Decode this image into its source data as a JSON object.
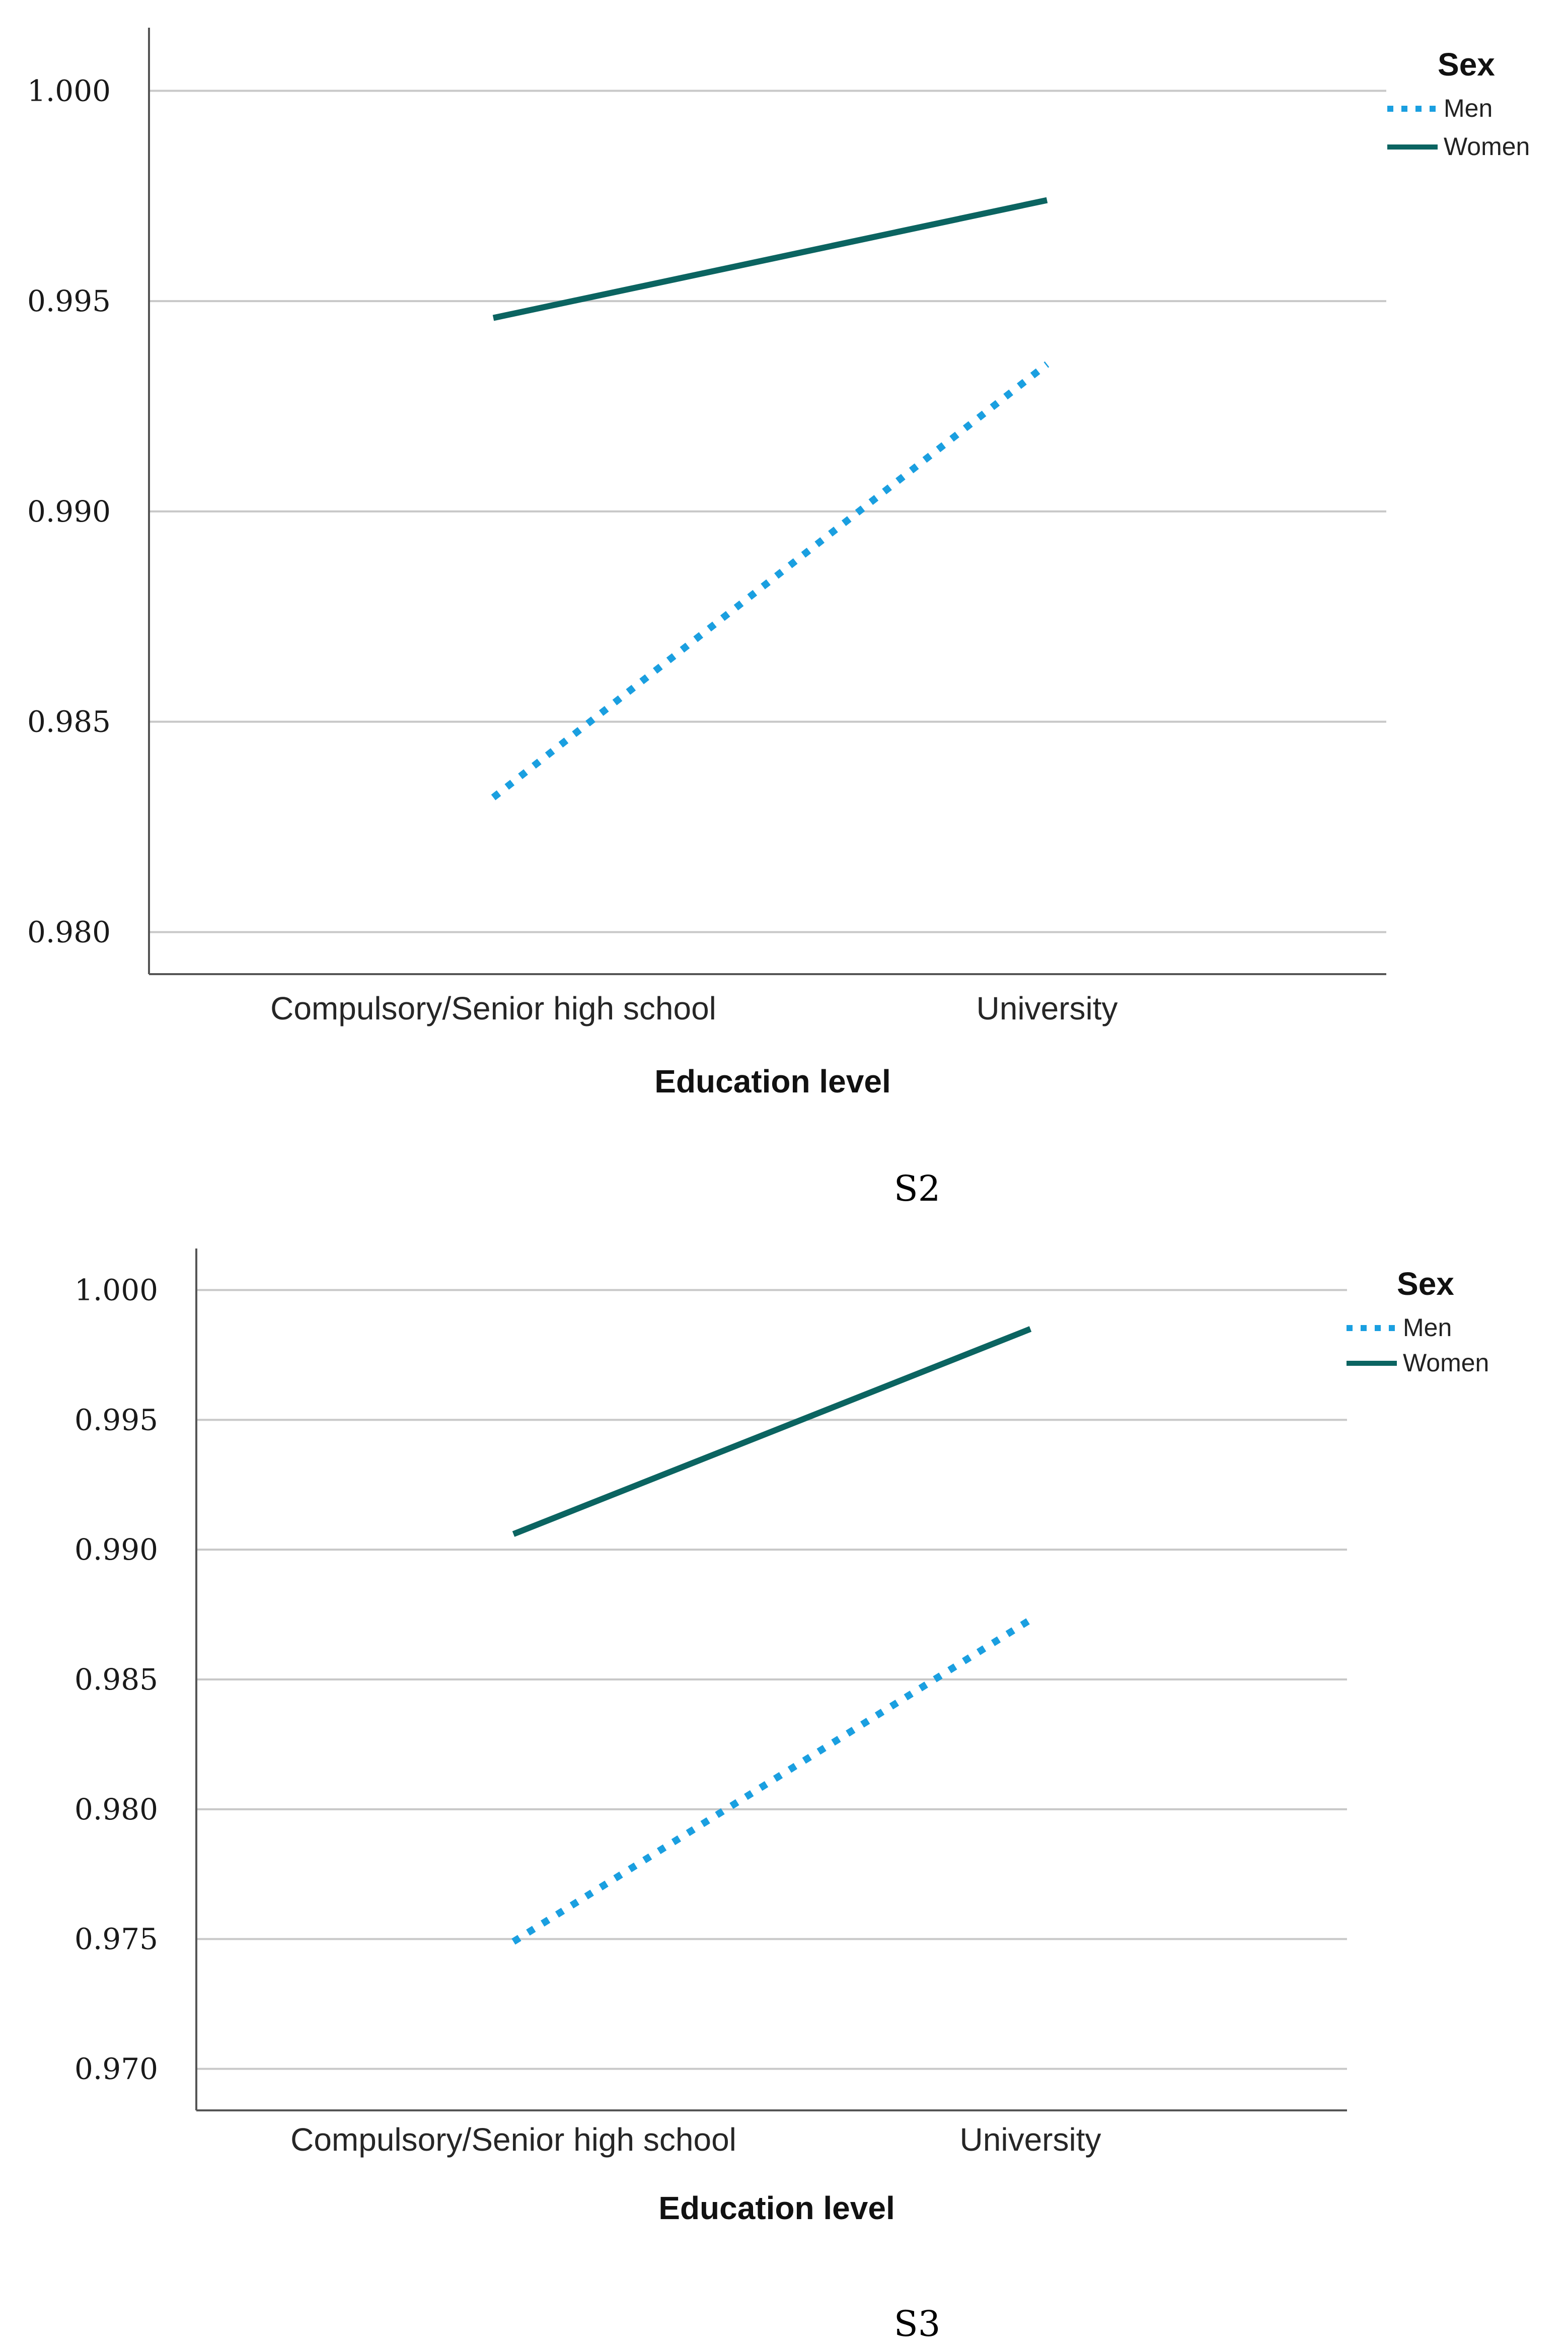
{
  "chart_data": [
    {
      "type": "line",
      "id": "S2",
      "caption": "S2",
      "xlabel": "Education level",
      "ylabel": "",
      "categories": [
        "Compulsory/Senior high school",
        "University"
      ],
      "ylim": [
        0.979,
        1.0015
      ],
      "yticks": [
        "0.980",
        "0.985",
        "0.990",
        "0.995",
        "1.000"
      ],
      "grid": true,
      "legend": {
        "title": "Sex",
        "position": "top-right"
      },
      "series": [
        {
          "name": "Men",
          "style": "dotted",
          "color": "#1a9fe0",
          "values": [
            0.9832,
            0.9935
          ]
        },
        {
          "name": "Women",
          "style": "solid",
          "color": "#0b6461",
          "values": [
            0.9946,
            0.9974
          ]
        }
      ]
    },
    {
      "type": "line",
      "id": "S3",
      "caption": "S3",
      "xlabel": "Education level",
      "ylabel": "",
      "categories": [
        "Compulsory/Senior high school",
        "University"
      ],
      "ylim": [
        0.9684,
        1.0016
      ],
      "yticks": [
        "0.970",
        "0.975",
        "0.980",
        "0.985",
        "0.990",
        "0.995",
        "1.000"
      ],
      "grid": true,
      "legend": {
        "title": "Sex",
        "position": "top-right"
      },
      "series": [
        {
          "name": "Men",
          "style": "dotted",
          "color": "#1a9fe0",
          "values": [
            0.9749,
            0.9873
          ]
        },
        {
          "name": "Women",
          "style": "solid",
          "color": "#0b6461",
          "values": [
            0.9906,
            0.9985
          ]
        }
      ]
    }
  ]
}
